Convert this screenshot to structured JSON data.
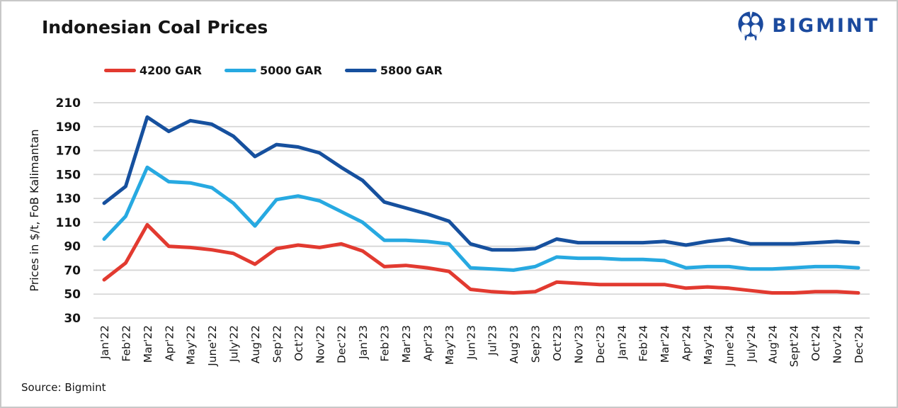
{
  "header": {
    "title": "Indonesian Coal Prices",
    "logo_text": "BIGMINT"
  },
  "source": {
    "label": "Source: Bigmint"
  },
  "colors": {
    "red": "#e23a30",
    "light_blue": "#27a9e1",
    "dark_blue": "#16509e",
    "logo_blue": "#1b4a9e",
    "grid": "#d6d6d6",
    "text": "#151515"
  },
  "chart_data": {
    "type": "line",
    "title": "Indonesian Coal Prices",
    "xlabel": "",
    "ylabel": "Prices in $/t, FoB Kalimantan",
    "ylim": [
      30,
      210
    ],
    "yticks": [
      30,
      50,
      70,
      90,
      110,
      130,
      150,
      170,
      190,
      210
    ],
    "grid": true,
    "legend_position": "top-left",
    "categories": [
      "Jan'22",
      "Feb'22",
      "Mar'22",
      "Apr'22",
      "May'22",
      "June'22",
      "July'22",
      "Aug'22",
      "Sep'22",
      "Oct'22",
      "Nov'22",
      "Dec'22",
      "Jan'23",
      "Feb'23",
      "Mar'23",
      "Apr'23",
      "May'23",
      "Jun'23",
      "Jul'23",
      "Aug'23",
      "Sep'23",
      "Oct'23",
      "Nov'23",
      "Dec'23",
      "Jan'24",
      "Feb'24",
      "Mar'24",
      "Apr'24",
      "May'24",
      "June'24",
      "July'24",
      "Aug'24",
      "Sept'24",
      "Oct'24",
      "Nov'24",
      "Dec'24"
    ],
    "series": [
      {
        "name": "4200 GAR",
        "color": "#e23a30",
        "values": [
          62,
          76,
          108,
          90,
          89,
          87,
          84,
          75,
          88,
          91,
          89,
          92,
          86,
          73,
          74,
          72,
          69,
          54,
          52,
          51,
          52,
          60,
          59,
          58,
          58,
          58,
          58,
          55,
          56,
          55,
          53,
          51,
          51,
          52,
          52,
          51
        ]
      },
      {
        "name": "5000 GAR",
        "color": "#27a9e1",
        "values": [
          96,
          115,
          156,
          144,
          143,
          139,
          126,
          107,
          129,
          132,
          128,
          119,
          110,
          95,
          95,
          94,
          92,
          72,
          71,
          70,
          73,
          81,
          80,
          80,
          79,
          79,
          78,
          72,
          73,
          73,
          71,
          71,
          72,
          73,
          73,
          72
        ]
      },
      {
        "name": "5800 GAR",
        "color": "#16509e",
        "values": [
          126,
          140,
          198,
          186,
          195,
          192,
          182,
          165,
          175,
          173,
          168,
          156,
          145,
          127,
          122,
          117,
          111,
          92,
          87,
          87,
          88,
          96,
          93,
          93,
          93,
          93,
          94,
          91,
          94,
          96,
          92,
          92,
          92,
          93,
          94,
          93
        ]
      }
    ]
  }
}
